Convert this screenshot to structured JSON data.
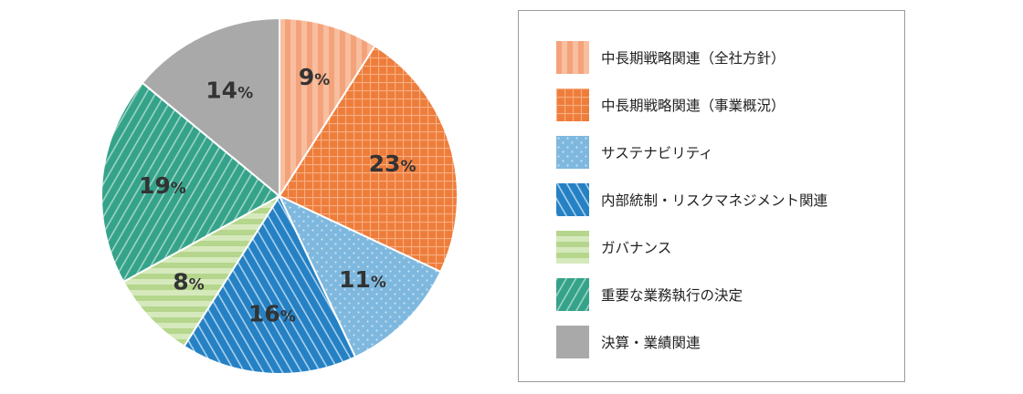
{
  "chart_data": {
    "type": "pie",
    "start_angle_deg": 0,
    "direction": "clockwise",
    "legend_position": "right",
    "slices": [
      {
        "label": "中長期戦略関連（全社方針）",
        "value": 9,
        "display": "9",
        "unit": "%",
        "color": "#f4a27a",
        "pattern": "vertical-stripes"
      },
      {
        "label": "中長期戦略関連（事業概況）",
        "value": 23,
        "display": "23",
        "unit": "%",
        "color": "#ee7d3b",
        "pattern": "grid"
      },
      {
        "label": "サステナビリティ",
        "value": 11,
        "display": "11",
        "unit": "%",
        "color": "#7fb8de",
        "pattern": "dots"
      },
      {
        "label": "内部統制・リスクマネジメント関連",
        "value": 16,
        "display": "16",
        "unit": "%",
        "color": "#2581c4",
        "pattern": "diagonal-stripes"
      },
      {
        "label": "ガバナンス",
        "value": 8,
        "display": "8",
        "unit": "%",
        "color": "#b5d68c",
        "pattern": "horizontal-stripes"
      },
      {
        "label": "重要な業務執行の決定",
        "value": 19,
        "display": "19",
        "unit": "%",
        "color": "#35a38a",
        "pattern": "diagonal-stripes"
      },
      {
        "label": "決算・業績関連",
        "value": 14,
        "display": "14",
        "unit": "%",
        "color": "#a9a9a9",
        "pattern": "solid"
      }
    ]
  }
}
